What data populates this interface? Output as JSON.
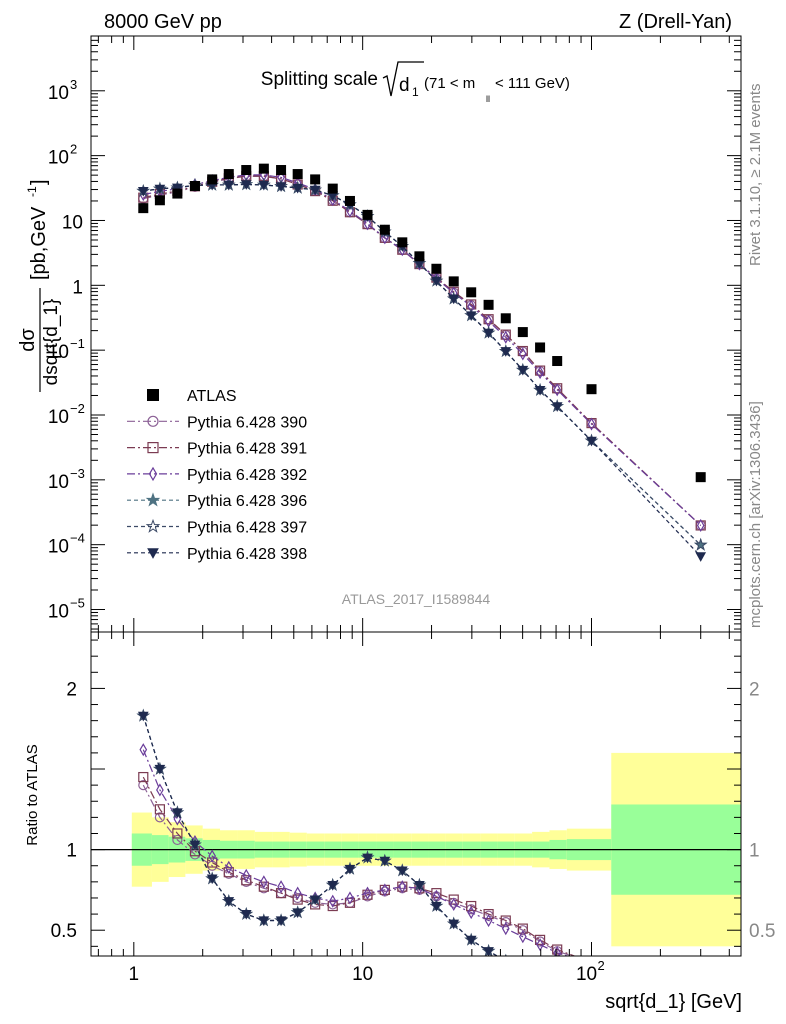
{
  "header": {
    "left": "8000 GeV pp",
    "right": "Z (Drell-Yan)",
    "title_main": "Splitting scale",
    "title_sym": "d",
    "title_sub": "1",
    "title_range_a": "(71 < m",
    "title_range_sub": "ll",
    "title_range_b": " < 111 GeV)",
    "analysis": "ATLAS_2017_I1589844",
    "rivet": "Rivet 3.1.10, ≥ 2.1M events",
    "mcplots": "mcplots.cern.ch [arXiv:1306.3436]"
  },
  "axes": {
    "ylabel_num": "dσ",
    "ylabel_den": "dsqrt{d_1}",
    "ylabel_units": "[pb,GeV",
    "ylabel_units_sup": "-1",
    "ylabel_units_end": "]",
    "ratio_ylabel": "Ratio to ATLAS",
    "xlabel": "sqrt{d_1} [GeV]"
  },
  "ticks": {
    "x_labels": [
      {
        "v": 1,
        "base": "1",
        "exp": ""
      },
      {
        "v": 10,
        "base": "10",
        "exp": ""
      },
      {
        "v": 100,
        "base": "10",
        "exp": "2"
      }
    ],
    "y_labels": [
      {
        "v": 1000,
        "base": "10",
        "exp": "3"
      },
      {
        "v": 100,
        "base": "10",
        "exp": "2"
      },
      {
        "v": 10,
        "base": "10",
        "exp": ""
      },
      {
        "v": 1,
        "base": "1",
        "exp": ""
      },
      {
        "v": 0.1,
        "base": "10",
        "exp": "−1"
      },
      {
        "v": 0.01,
        "base": "10",
        "exp": "−2"
      },
      {
        "v": 0.001,
        "base": "10",
        "exp": "−3"
      },
      {
        "v": 0.0001,
        "base": "10",
        "exp": "−4"
      },
      {
        "v": 1e-05,
        "base": "10",
        "exp": "−5"
      }
    ],
    "ratio_labels": [
      {
        "v": 2,
        "text": "2"
      },
      {
        "v": 1,
        "text": "1"
      },
      {
        "v": 0.5,
        "text": "0.5"
      }
    ]
  },
  "chart_data": {
    "type": "scatter",
    "x_scale": "log",
    "y_scale": "log",
    "xlim": [
      0.65,
      450
    ],
    "ylim": [
      4.5e-06,
      7000
    ],
    "ratio_ylim": [
      0.34,
      2.35
    ],
    "legend_position": "bottom-left",
    "data": {
      "name": "ATLAS",
      "color": "#000000",
      "x": [
        1.1,
        1.3,
        1.55,
        1.85,
        2.2,
        2.6,
        3.1,
        3.7,
        4.4,
        5.2,
        6.2,
        7.4,
        8.8,
        10.5,
        12.5,
        14.9,
        17.7,
        21.0,
        25.0,
        29.8,
        35.5,
        42.2,
        50.1,
        59.6,
        70.8,
        100.0,
        300.0
      ],
      "y": [
        15.5,
        20.5,
        26.0,
        34.0,
        43.0,
        52.0,
        60.0,
        63.0,
        60.0,
        52.0,
        43.0,
        31.0,
        20.0,
        12.2,
        7.2,
        4.6,
        2.8,
        1.8,
        1.15,
        0.78,
        0.5,
        0.31,
        0.19,
        0.11,
        0.068,
        0.025,
        0.0011
      ]
    },
    "bands": {
      "x_edges": [
        0.98,
        1.2,
        1.42,
        1.68,
        2.0,
        2.38,
        2.84,
        3.38,
        4.02,
        4.8,
        5.7,
        6.8,
        8.1,
        9.6,
        11.5,
        13.7,
        16.3,
        19.4,
        23.1,
        27.4,
        32.6,
        38.8,
        46.2,
        55.0,
        65.5,
        78.0,
        122.0,
        480.0
      ],
      "stat_half_width": [
        0.1,
        0.09,
        0.08,
        0.07,
        0.06,
        0.055,
        0.055,
        0.05,
        0.05,
        0.05,
        0.05,
        0.05,
        0.05,
        0.05,
        0.05,
        0.05,
        0.05,
        0.05,
        0.05,
        0.05,
        0.05,
        0.05,
        0.05,
        0.05,
        0.06,
        0.065,
        0.28
      ],
      "total_half_width": [
        0.23,
        0.2,
        0.17,
        0.15,
        0.13,
        0.12,
        0.12,
        0.11,
        0.11,
        0.105,
        0.1,
        0.1,
        0.1,
        0.1,
        0.1,
        0.1,
        0.1,
        0.1,
        0.1,
        0.1,
        0.1,
        0.1,
        0.1,
        0.11,
        0.12,
        0.13,
        0.6
      ],
      "stat_color": "#99ff99",
      "total_color": "#ffff99"
    },
    "series": [
      {
        "name": "Pythia 6.428 390",
        "marker": "circle",
        "color": "#8c6196",
        "dash": "8,3,2,3",
        "x": [
          1.1,
          1.3,
          1.55,
          1.85,
          2.2,
          2.6,
          3.1,
          3.7,
          4.4,
          5.2,
          6.2,
          7.4,
          8.8,
          10.5,
          12.5,
          14.9,
          17.7,
          21.0,
          25.0,
          29.8,
          35.5,
          42.2,
          50.1,
          59.6,
          70.8,
          100.0,
          300.0
        ],
        "ratio": [
          1.4,
          1.2,
          1.06,
          0.97,
          0.9,
          0.85,
          0.8,
          0.76,
          0.73,
          0.7,
          0.67,
          0.66,
          0.67,
          0.71,
          0.74,
          0.76,
          0.75,
          0.71,
          0.67,
          0.63,
          0.59,
          0.55,
          0.5,
          0.43,
          0.37,
          0.3,
          0.18
        ]
      },
      {
        "name": "Pythia 6.428 391",
        "marker": "square",
        "color": "#7b3b52",
        "dash": "8,3,2,3",
        "x": [
          1.1,
          1.3,
          1.55,
          1.85,
          2.2,
          2.6,
          3.1,
          3.7,
          4.4,
          5.2,
          6.2,
          7.4,
          8.8,
          10.5,
          12.5,
          14.9,
          17.7,
          21.0,
          25.0,
          29.8,
          35.5,
          42.2,
          50.1,
          59.6,
          70.8,
          100.0,
          300.0
        ],
        "ratio": [
          1.45,
          1.25,
          1.1,
          0.99,
          0.92,
          0.86,
          0.81,
          0.77,
          0.73,
          0.69,
          0.66,
          0.65,
          0.67,
          0.72,
          0.75,
          0.77,
          0.76,
          0.73,
          0.69,
          0.65,
          0.6,
          0.56,
          0.51,
          0.44,
          0.38,
          0.3,
          0.18
        ]
      },
      {
        "name": "Pythia 6.428 392",
        "marker": "diamond",
        "color": "#6a3d9a",
        "dash": "8,3,2,3",
        "x": [
          1.1,
          1.3,
          1.55,
          1.85,
          2.2,
          2.6,
          3.1,
          3.7,
          4.4,
          5.2,
          6.2,
          7.4,
          8.8,
          10.5,
          12.5,
          14.9,
          17.7,
          21.0,
          25.0,
          29.8,
          35.5,
          42.2,
          50.1,
          59.6,
          70.8,
          100.0,
          300.0
        ],
        "ratio": [
          1.62,
          1.37,
          1.19,
          1.05,
          0.96,
          0.89,
          0.84,
          0.8,
          0.77,
          0.73,
          0.7,
          0.68,
          0.7,
          0.73,
          0.75,
          0.77,
          0.76,
          0.71,
          0.66,
          0.61,
          0.56,
          0.51,
          0.46,
          0.41,
          0.36,
          0.29,
          0.18
        ]
      },
      {
        "name": "Pythia 6.428 396",
        "marker": "star",
        "color": "#4e7282",
        "dash": "4,3",
        "x": [
          1.1,
          1.3,
          1.55,
          1.85,
          2.2,
          2.6,
          3.1,
          3.7,
          4.4,
          5.2,
          6.2,
          7.4,
          8.8,
          10.5,
          12.5,
          14.9,
          17.7,
          21.0,
          25.0,
          29.8,
          35.5,
          42.2,
          50.1,
          59.6,
          70.8,
          100.0,
          300.0
        ],
        "ratio": [
          1.83,
          1.5,
          1.23,
          1.03,
          0.82,
          0.68,
          0.6,
          0.56,
          0.56,
          0.61,
          0.69,
          0.78,
          0.88,
          0.95,
          0.93,
          0.87,
          0.78,
          0.65,
          0.54,
          0.44,
          0.37,
          0.31,
          0.26,
          0.22,
          0.2,
          0.16,
          0.09
        ]
      },
      {
        "name": "Pythia 6.428 397",
        "marker": "star-open",
        "color": "#3c4a66",
        "dash": "4,3",
        "x": [
          1.1,
          1.3,
          1.55,
          1.85,
          2.2,
          2.6,
          3.1,
          3.7,
          4.4,
          5.2,
          6.2,
          7.4,
          8.8,
          10.5,
          12.5,
          14.9,
          17.7,
          21.0,
          25.0,
          29.8,
          35.5,
          42.2,
          50.1,
          59.6,
          70.8,
          100.0,
          300.0
        ],
        "ratio": [
          1.83,
          1.5,
          1.23,
          1.03,
          0.82,
          0.68,
          0.6,
          0.56,
          0.56,
          0.61,
          0.69,
          0.78,
          0.88,
          0.95,
          0.93,
          0.87,
          0.78,
          0.65,
          0.54,
          0.44,
          0.37,
          0.31,
          0.26,
          0.22,
          0.2,
          0.16,
          0.09
        ]
      },
      {
        "name": "Pythia 6.428 398",
        "marker": "triangle-down",
        "color": "#1f2a4f",
        "dash": "4,3",
        "x": [
          1.1,
          1.3,
          1.55,
          1.85,
          2.2,
          2.6,
          3.1,
          3.7,
          4.4,
          5.2,
          6.2,
          7.4,
          8.8,
          10.5,
          12.5,
          14.9,
          17.7,
          21.0,
          25.0,
          29.8,
          35.5,
          42.2,
          50.1,
          59.6,
          70.8,
          100.0,
          300.0
        ],
        "ratio": [
          1.83,
          1.5,
          1.23,
          1.03,
          0.82,
          0.68,
          0.6,
          0.56,
          0.56,
          0.61,
          0.69,
          0.78,
          0.88,
          0.95,
          0.93,
          0.87,
          0.78,
          0.65,
          0.54,
          0.44,
          0.37,
          0.31,
          0.26,
          0.22,
          0.2,
          0.16,
          0.06
        ]
      }
    ]
  }
}
